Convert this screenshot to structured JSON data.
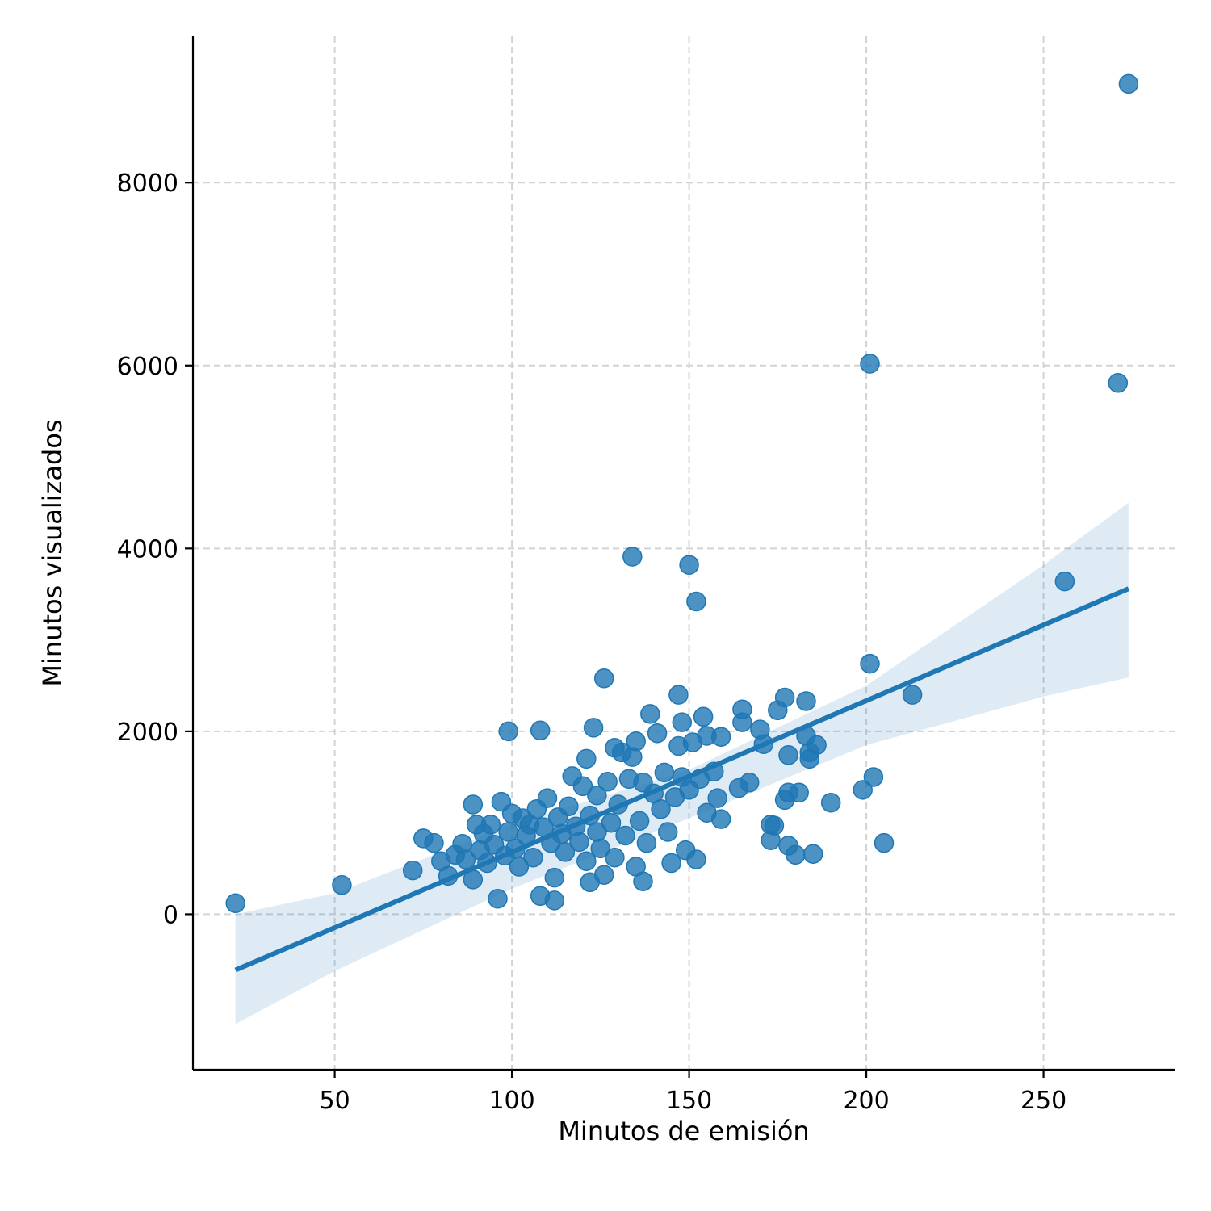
{
  "chart_data": {
    "type": "scatter",
    "title": "",
    "xlabel": "Minutos de emisión",
    "ylabel": "Minutos visualizados",
    "xlim": [
      10,
      287
    ],
    "ylim": [
      -1700,
      9600
    ],
    "xticks": [
      50,
      100,
      150,
      200,
      250
    ],
    "yticks": [
      0,
      2000,
      4000,
      6000,
      8000
    ],
    "grid": true,
    "color": "#1f77b4",
    "points": [
      [
        22,
        120
      ],
      [
        52,
        320
      ],
      [
        72,
        480
      ],
      [
        75,
        830
      ],
      [
        78,
        780
      ],
      [
        80,
        580
      ],
      [
        82,
        420
      ],
      [
        84,
        650
      ],
      [
        86,
        770
      ],
      [
        87,
        600
      ],
      [
        89,
        1200
      ],
      [
        89,
        380
      ],
      [
        90,
        980
      ],
      [
        91,
        700
      ],
      [
        92,
        880
      ],
      [
        93,
        560
      ],
      [
        94,
        980
      ],
      [
        95,
        760
      ],
      [
        96,
        170
      ],
      [
        97,
        1230
      ],
      [
        98,
        640
      ],
      [
        99,
        2000
      ],
      [
        99,
        900
      ],
      [
        100,
        1100
      ],
      [
        101,
        720
      ],
      [
        102,
        520
      ],
      [
        103,
        1050
      ],
      [
        104,
        860
      ],
      [
        105,
        980
      ],
      [
        106,
        620
      ],
      [
        107,
        1150
      ],
      [
        108,
        2010
      ],
      [
        108,
        200
      ],
      [
        109,
        950
      ],
      [
        110,
        1270
      ],
      [
        111,
        780
      ],
      [
        112,
        400
      ],
      [
        112,
        150
      ],
      [
        113,
        1060
      ],
      [
        114,
        880
      ],
      [
        115,
        680
      ],
      [
        116,
        1180
      ],
      [
        117,
        1510
      ],
      [
        118,
        960
      ],
      [
        119,
        790
      ],
      [
        120,
        1400
      ],
      [
        121,
        1700
      ],
      [
        121,
        580
      ],
      [
        122,
        350
      ],
      [
        122,
        1080
      ],
      [
        123,
        2040
      ],
      [
        124,
        900
      ],
      [
        124,
        1300
      ],
      [
        125,
        720
      ],
      [
        126,
        2580
      ],
      [
        126,
        430
      ],
      [
        127,
        1450
      ],
      [
        128,
        1000
      ],
      [
        129,
        1820
      ],
      [
        129,
        620
      ],
      [
        130,
        1200
      ],
      [
        131,
        1770
      ],
      [
        132,
        860
      ],
      [
        133,
        1480
      ],
      [
        134,
        3910
      ],
      [
        134,
        1720
      ],
      [
        135,
        1890
      ],
      [
        135,
        520
      ],
      [
        136,
        1020
      ],
      [
        137,
        1440
      ],
      [
        137,
        360
      ],
      [
        138,
        780
      ],
      [
        139,
        2190
      ],
      [
        140,
        1320
      ],
      [
        141,
        1980
      ],
      [
        142,
        1150
      ],
      [
        143,
        1550
      ],
      [
        144,
        900
      ],
      [
        145,
        560
      ],
      [
        146,
        1280
      ],
      [
        147,
        2400
      ],
      [
        147,
        1840
      ],
      [
        148,
        2100
      ],
      [
        148,
        1500
      ],
      [
        149,
        700
      ],
      [
        150,
        3820
      ],
      [
        150,
        1360
      ],
      [
        151,
        1880
      ],
      [
        152,
        3420
      ],
      [
        152,
        600
      ],
      [
        153,
        1480
      ],
      [
        154,
        2160
      ],
      [
        155,
        1950
      ],
      [
        155,
        1110
      ],
      [
        157,
        1560
      ],
      [
        158,
        1270
      ],
      [
        159,
        1940
      ],
      [
        159,
        1040
      ],
      [
        164,
        1380
      ],
      [
        165,
        2240
      ],
      [
        165,
        2100
      ],
      [
        167,
        1440
      ],
      [
        170,
        2020
      ],
      [
        171,
        1860
      ],
      [
        173,
        980
      ],
      [
        173,
        810
      ],
      [
        174,
        970
      ],
      [
        175,
        2230
      ],
      [
        177,
        2370
      ],
      [
        177,
        1250
      ],
      [
        178,
        1740
      ],
      [
        178,
        1330
      ],
      [
        178,
        750
      ],
      [
        180,
        650
      ],
      [
        181,
        1330
      ],
      [
        183,
        2330
      ],
      [
        183,
        1950
      ],
      [
        184,
        1700
      ],
      [
        184,
        1770
      ],
      [
        185,
        660
      ],
      [
        186,
        1850
      ],
      [
        190,
        1220
      ],
      [
        199,
        1360
      ],
      [
        201,
        6020
      ],
      [
        201,
        2740
      ],
      [
        202,
        1500
      ],
      [
        205,
        780
      ],
      [
        213,
        2400
      ],
      [
        256,
        3640
      ],
      [
        271,
        5810
      ],
      [
        274,
        9080
      ]
    ],
    "regression": {
      "x": [
        22,
        274
      ],
      "y": [
        -610,
        3560
      ],
      "ci_x": [
        22,
        50,
        100,
        150,
        200,
        250,
        274
      ],
      "ci_lower": [
        -1200,
        -620,
        280,
        1050,
        1850,
        2380,
        2590
      ],
      "ci_upper": [
        0,
        230,
        980,
        1580,
        2500,
        3820,
        4500
      ]
    }
  }
}
